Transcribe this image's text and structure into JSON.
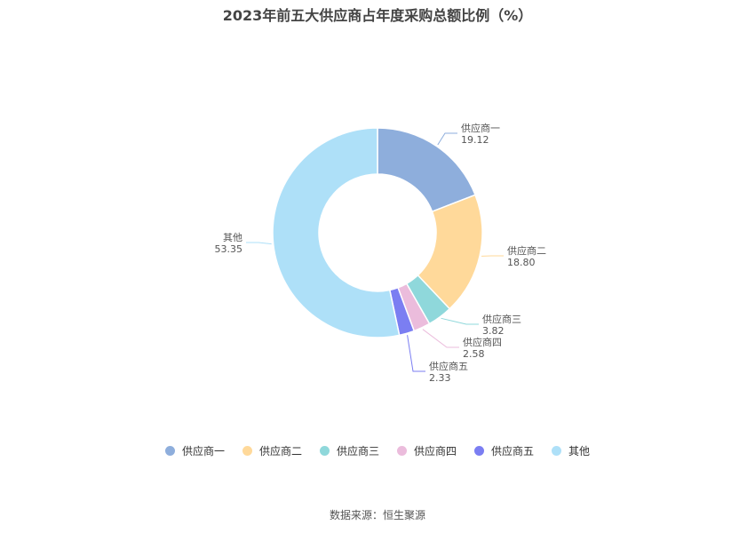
{
  "chart_data": {
    "type": "pie",
    "title": "2023年前五大供应商占年度采购总额比例（%）",
    "donut": true,
    "legend_position": "bottom",
    "slices": [
      {
        "name": "供应商一",
        "value": 19.12,
        "label": "19.12",
        "color": "#8eaedc"
      },
      {
        "name": "供应商二",
        "value": 18.8,
        "label": "18.80",
        "color": "#ffd99a"
      },
      {
        "name": "供应商三",
        "value": 3.82,
        "label": "3.82",
        "color": "#8fd8db"
      },
      {
        "name": "供应商四",
        "value": 2.58,
        "label": "2.58",
        "color": "#ebbcdc"
      },
      {
        "name": "供应商五",
        "value": 2.33,
        "label": "2.33",
        "color": "#7b7ef2"
      },
      {
        "name": "其他",
        "value": 53.35,
        "label": "53.35",
        "color": "#aee0f8"
      }
    ]
  },
  "source": "数据来源：恒生聚源"
}
